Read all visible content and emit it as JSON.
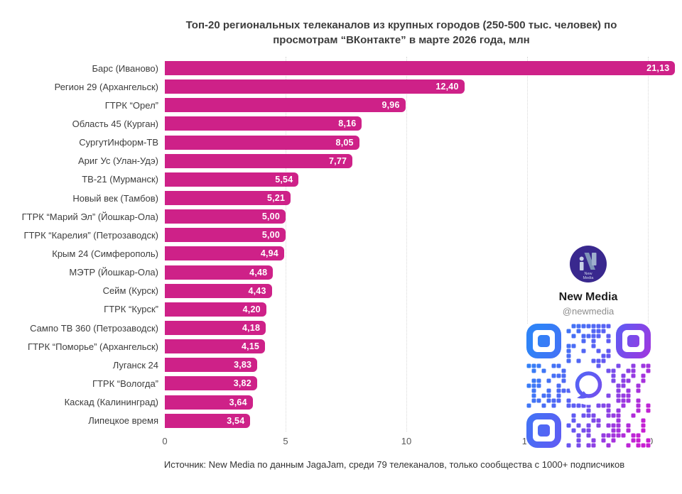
{
  "chart_data": {
    "type": "bar",
    "orientation": "horizontal",
    "title": "Топ-20 региональных телеканалов из крупных городов (250-500 тыс. человек) по просмотрам “ВКонтакте” в марте 2026 года, млн",
    "categories": [
      "Барс (Иваново)",
      "Регион 29 (Архангельск)",
      "ГТРК “Орел”",
      "Область 45 (Курган)",
      "СургутИнформ-ТВ",
      "Ариг Ус (Улан-Удэ)",
      "ТВ-21 (Мурманск)",
      "Новый век (Тамбов)",
      "ГТРК “Марий Эл” (Йошкар-Ола)",
      "ГТРК “Карелия” (Петрозаводск)",
      "Крым 24 (Симферополь)",
      "МЭТР (Йошкар-Ола)",
      "Сейм (Курск)",
      "ГТРК “Курск”",
      "Сампо ТВ 360 (Петрозаводск)",
      "ГТРК “Поморье” (Архангельск)",
      "Луганск 24",
      "ГТРК “Вологда”",
      "Каскад (Калининград)",
      "Липецкое время"
    ],
    "values": [
      21.13,
      12.4,
      9.96,
      8.16,
      8.05,
      7.77,
      5.54,
      5.21,
      5.0,
      5.0,
      4.94,
      4.48,
      4.43,
      4.2,
      4.18,
      4.15,
      3.83,
      3.82,
      3.64,
      3.54
    ],
    "value_labels": [
      "21,13",
      "12,40",
      "9,96",
      "8,16",
      "8,05",
      "7,77",
      "5,54",
      "5,21",
      "5,00",
      "5,00",
      "4,94",
      "4,48",
      "4,43",
      "4,20",
      "4,18",
      "4,15",
      "3,83",
      "3,82",
      "3,64",
      "3,54"
    ],
    "xlabel": "",
    "ylabel": "",
    "xlim": [
      0,
      20
    ],
    "x_ticks": [
      "0",
      "5",
      "10",
      "15",
      "20"
    ],
    "grid": "vertical-dotted",
    "legend": "none",
    "bar_color": "#ce2188"
  },
  "branding": {
    "name": "New Media",
    "handle": "@newmedia",
    "logo_text_line1": "New",
    "logo_text_line2": "Media"
  },
  "footer": {
    "source": "Источник: New Media по данным JagaJam, среди 79 телеканалов, только сообщества с 1000+ подписчиков"
  },
  "colors": {
    "bar": "#ce2188",
    "title_text": "#3d3d3d",
    "label_text": "#3d3d3d",
    "tick_text": "#595959",
    "grid_line": "#d8d8d8",
    "value_text": "#ffffff",
    "logo_circle": "#39288e",
    "qr_gradient_start": "#2f83f7",
    "qr_gradient_mid": "#5f5bf3",
    "qr_gradient_end": "#c81ed2",
    "handle_text": "#8d8d8d"
  }
}
